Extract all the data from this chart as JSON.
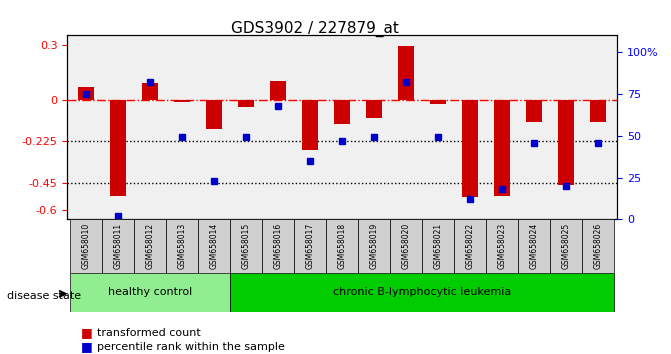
{
  "title": "GDS3902 / 227879_at",
  "samples": [
    "GSM658010",
    "GSM658011",
    "GSM658012",
    "GSM658013",
    "GSM658014",
    "GSM658015",
    "GSM658016",
    "GSM658017",
    "GSM658018",
    "GSM658019",
    "GSM658020",
    "GSM658021",
    "GSM658022",
    "GSM658023",
    "GSM658024",
    "GSM658025",
    "GSM658026"
  ],
  "bar_values": [
    0.07,
    -0.52,
    0.09,
    -0.01,
    -0.16,
    -0.04,
    0.1,
    -0.27,
    -0.13,
    -0.1,
    0.29,
    -0.02,
    -0.53,
    -0.52,
    -0.12,
    -0.46,
    -0.12
  ],
  "blue_values": [
    75,
    2,
    82,
    49,
    23,
    49,
    68,
    35,
    47,
    49,
    82,
    49,
    12,
    18,
    46,
    20,
    46
  ],
  "ylim_left": [
    -0.65,
    0.35
  ],
  "ylim_right": [
    0,
    110
  ],
  "yticks_left": [
    -0.6,
    -0.45,
    -0.225,
    0.0,
    0.3
  ],
  "ytick_labels_left": [
    "-0.6",
    "-0.45",
    "-0.225",
    "0",
    "0.3"
  ],
  "yticks_right": [
    0,
    25,
    50,
    75,
    100
  ],
  "ytick_labels_right": [
    "0",
    "25",
    "50",
    "75",
    "100%"
  ],
  "hlines_dotted": [
    -0.225,
    -0.45
  ],
  "hline_dashdot": 0.0,
  "bar_color": "#cc0000",
  "blue_color": "#0000cc",
  "healthy_label": "healthy control",
  "disease_label": "chronic B-lymphocytic leukemia",
  "disease_state_label": "disease state",
  "legend_bar": "transformed count",
  "legend_dot": "percentile rank within the sample",
  "healthy_count": 5,
  "bg_color": "#e8e8e8",
  "group_color_healthy": "#90ee90",
  "group_color_disease": "#00cc00"
}
